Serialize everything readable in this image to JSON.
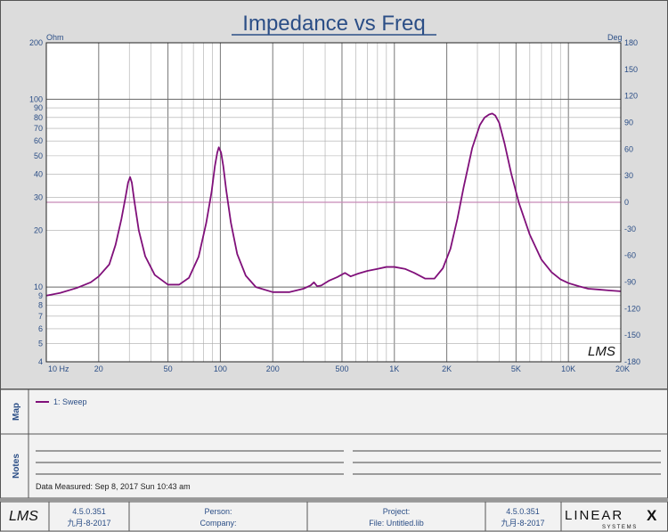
{
  "chart_data": {
    "type": "line",
    "title": "Impedance vs Freq ",
    "y_left_unit": "Ohm",
    "y_right_unit": "Deg",
    "x_scale": "log",
    "y_scale": "log",
    "xlim": [
      10,
      20000
    ],
    "ylim": [
      4,
      200
    ],
    "y2lim": [
      -180,
      180
    ],
    "grid": true,
    "x_ticks": [
      {
        "value": 10,
        "label": "10  Hz"
      },
      {
        "value": 20,
        "label": "20"
      },
      {
        "value": 50,
        "label": "50"
      },
      {
        "value": 100,
        "label": "100"
      },
      {
        "value": 200,
        "label": "200"
      },
      {
        "value": 500,
        "label": "500"
      },
      {
        "value": 1000,
        "label": "1K"
      },
      {
        "value": 2000,
        "label": "2K"
      },
      {
        "value": 5000,
        "label": "5K"
      },
      {
        "value": 10000,
        "label": "10K"
      },
      {
        "value": 20000,
        "label": "20K"
      }
    ],
    "y_ticks": [
      {
        "value": 200,
        "label": "200"
      },
      {
        "value": 100,
        "label": "100"
      },
      {
        "value": 90,
        "label": "90"
      },
      {
        "value": 80,
        "label": "80"
      },
      {
        "value": 70,
        "label": "70"
      },
      {
        "value": 60,
        "label": "60"
      },
      {
        "value": 50,
        "label": "50"
      },
      {
        "value": 40,
        "label": "40"
      },
      {
        "value": 30,
        "label": "30"
      },
      {
        "value": 20,
        "label": "20"
      },
      {
        "value": 10,
        "label": "10"
      },
      {
        "value": 9,
        "label": "9"
      },
      {
        "value": 8,
        "label": "8"
      },
      {
        "value": 7,
        "label": "7"
      },
      {
        "value": 6,
        "label": "6"
      },
      {
        "value": 5,
        "label": "5"
      },
      {
        "value": 4,
        "label": "4"
      }
    ],
    "y2_ticks": [
      180,
      150,
      120,
      90,
      60,
      30,
      0,
      -30,
      -60,
      -90,
      -120,
      -150,
      -180
    ],
    "reference_line": {
      "axis": "y2",
      "value": 0,
      "color": "#c88ab8"
    },
    "series": [
      {
        "name": "1: Sweep",
        "color": "#80107a",
        "x": [
          10,
          12,
          15,
          18,
          20,
          23,
          25,
          27,
          28.5,
          29.5,
          30.3,
          31,
          32,
          34,
          37,
          42,
          50,
          58,
          66,
          75,
          83,
          89,
          93,
          96,
          98,
          101,
          104,
          108,
          115,
          125,
          140,
          160,
          200,
          250,
          300,
          330,
          345,
          360,
          380,
          420,
          470,
          520,
          560,
          620,
          700,
          800,
          900,
          1000,
          1150,
          1300,
          1500,
          1700,
          1900,
          2100,
          2300,
          2500,
          2800,
          3100,
          3300,
          3500,
          3650,
          3800,
          4000,
          4300,
          4700,
          5200,
          6000,
          7000,
          8000,
          9000,
          10000,
          11500,
          13000,
          15000,
          17000,
          20000
        ],
        "values": [
          9.0,
          9.3,
          9.9,
          10.6,
          11.4,
          13.2,
          16.8,
          23.0,
          30.0,
          36.0,
          38.5,
          36.0,
          29.0,
          20.0,
          14.6,
          11.6,
          10.3,
          10.3,
          11.2,
          14.5,
          22.0,
          32.0,
          44.0,
          52.0,
          55.5,
          52.0,
          44.0,
          33.0,
          22.0,
          15.0,
          11.5,
          10.0,
          9.4,
          9.4,
          9.8,
          10.2,
          10.6,
          10.1,
          10.2,
          10.8,
          11.3,
          11.9,
          11.4,
          11.8,
          12.2,
          12.5,
          12.8,
          12.8,
          12.5,
          11.9,
          11.1,
          11.1,
          12.6,
          16.0,
          23.0,
          34.0,
          55.0,
          73.0,
          80.0,
          83.0,
          84.0,
          82.0,
          75.0,
          58.0,
          40.0,
          28.0,
          19.0,
          14.0,
          12.0,
          11.0,
          10.5,
          10.1,
          9.8,
          9.7,
          9.6,
          9.5
        ]
      }
    ]
  },
  "sections": {
    "map_label": "Map",
    "notes_label": "Notes"
  },
  "legend": {
    "entry": "1: Sweep"
  },
  "notes": {
    "data_measured": "Data Measured: Sep 8, 2017 Sun 10:43 am"
  },
  "watermark": "LMS",
  "footer": {
    "logo": "LMS",
    "version_left": "4.5.0.351",
    "date_left": "九月-8-2017",
    "person_label": "Person:",
    "company_label": "Company:",
    "project_label": "Project:",
    "file_label": "File: Untitled.lib",
    "version_right": "4.5.0.351",
    "date_right": "九月-8-2017",
    "brand": "LINEAR",
    "brand_x": "X",
    "brand_sub": "S Y S T E M S",
    "brand_color": "#000000",
    "accent_color": "#2b4e86"
  }
}
